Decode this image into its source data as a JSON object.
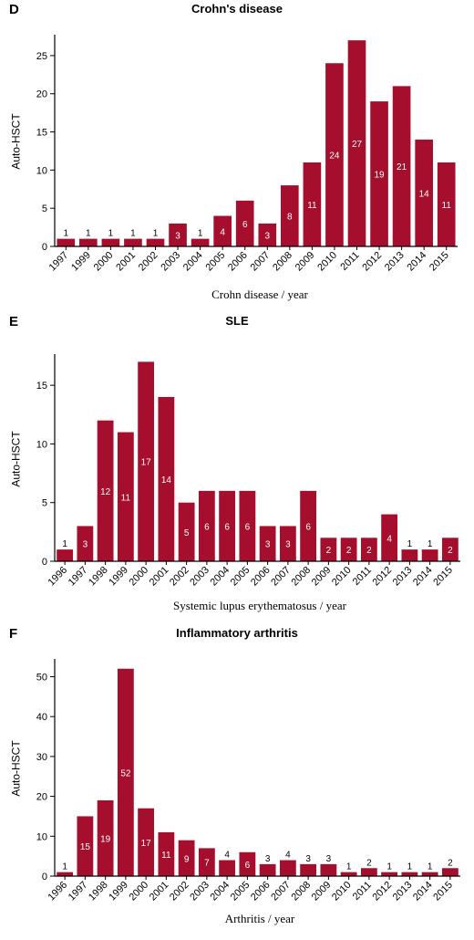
{
  "chart_data": [
    {
      "type": "bar",
      "panel": "D",
      "title": "Crohn's disease",
      "xlabel": "Crohn disease / year",
      "ylabel": "Auto-HSCT",
      "categories": [
        "1997",
        "1999",
        "2000",
        "2001",
        "2002",
        "2003",
        "2004",
        "2005",
        "2006",
        "2007",
        "2008",
        "2009",
        "2010",
        "2011",
        "2012",
        "2013",
        "2014",
        "2015"
      ],
      "values": [
        1,
        1,
        1,
        1,
        1,
        3,
        1,
        4,
        6,
        3,
        8,
        11,
        24,
        27,
        19,
        21,
        14,
        11
      ],
      "data_labels": [
        "1",
        "1",
        "1",
        "1",
        "1",
        "3",
        "1",
        "4",
        "6",
        "3",
        "8",
        "11",
        "24",
        "27",
        "19",
        "21",
        "14",
        "11"
      ],
      "yticks": [
        0,
        5,
        10,
        15,
        20,
        25
      ],
      "ylim": [
        0,
        27.5
      ],
      "bar_color": "#a50f2d",
      "grid": false
    },
    {
      "type": "bar",
      "panel": "E",
      "title": "SLE",
      "xlabel": "Systemic lupus erythematosus / year",
      "ylabel": "Auto-HSCT",
      "categories": [
        "1996",
        "1997",
        "1998",
        "1999",
        "2000",
        "2001",
        "2002",
        "2003",
        "2004",
        "2005",
        "2006",
        "2007",
        "2008",
        "2009",
        "2010",
        "2011",
        "2012",
        "2013",
        "2014",
        "2015"
      ],
      "values": [
        1,
        3,
        12,
        11,
        17,
        14,
        5,
        6,
        6,
        6,
        3,
        3,
        6,
        2,
        2,
        2,
        4,
        1,
        1,
        2
      ],
      "data_labels": [
        "1",
        "3",
        "12",
        "11",
        "17",
        "14",
        "5",
        "6",
        "6",
        "6",
        "3",
        "3",
        "6",
        "2",
        "2",
        "2",
        "4",
        "1",
        "1",
        "2"
      ],
      "yticks": [
        0,
        5,
        10,
        15
      ],
      "ylim": [
        0,
        17.5
      ],
      "bar_color": "#a50f2d",
      "grid": false
    },
    {
      "type": "bar",
      "panel": "F",
      "title": "Inflammatory arthritis",
      "xlabel": "Arthritis / year",
      "ylabel": "Auto-HSCT",
      "categories": [
        "1996",
        "1997",
        "1998",
        "1999",
        "2000",
        "2001",
        "2002",
        "2003",
        "2004",
        "2005",
        "2006",
        "2007",
        "2008",
        "2009",
        "2010",
        "2011",
        "2012",
        "2013",
        "2014",
        "2015"
      ],
      "values": [
        1,
        15,
        19,
        52,
        17,
        11,
        9,
        7,
        4,
        6,
        3,
        4,
        3,
        3,
        1,
        2,
        1,
        1,
        1,
        2
      ],
      "data_labels": [
        "1",
        "15",
        "19",
        "52",
        "17",
        "11",
        "9",
        "7",
        "4",
        "6",
        "3",
        "4",
        "3",
        "3",
        "1",
        "2",
        "1",
        "1",
        "1",
        "2"
      ],
      "yticks": [
        0,
        10,
        20,
        30,
        40,
        50
      ],
      "ylim": [
        0,
        54
      ],
      "bar_color": "#a50f2d",
      "grid": false
    }
  ]
}
